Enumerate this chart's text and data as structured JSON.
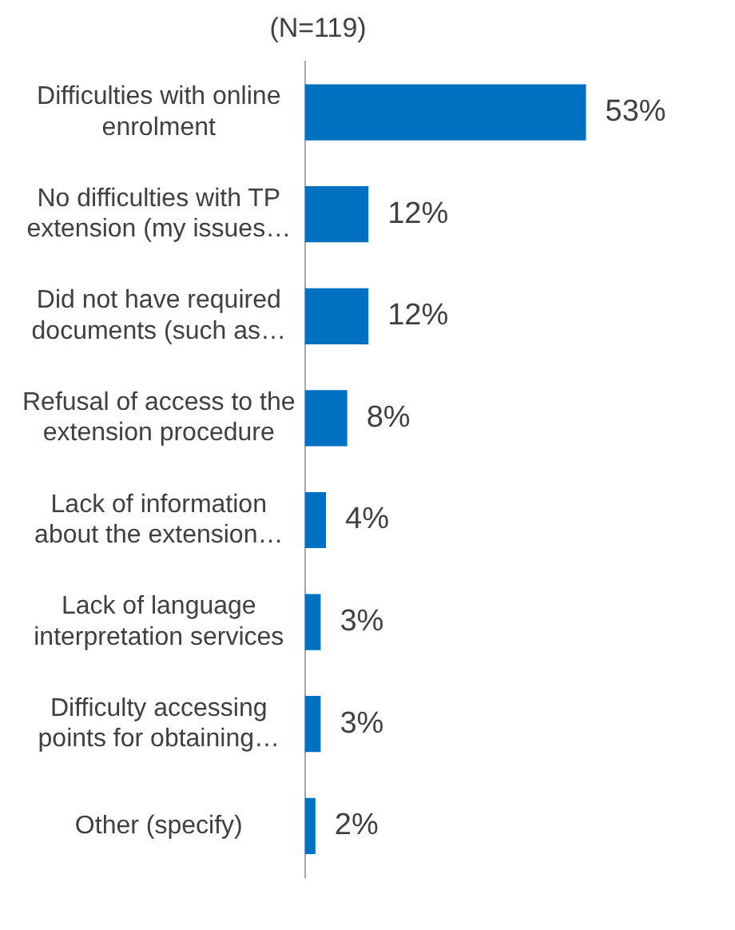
{
  "chart_data": {
    "type": "bar",
    "orientation": "horizontal",
    "subtitle": "(N=119)",
    "categories": [
      "Difficulties with online enrolment",
      "No difficulties with TP extension (my issues…",
      "Did not have required documents (such as…",
      "Refusal of access to the extension procedure",
      "Lack of information about the extension…",
      "Lack of language interpretation services",
      "Difficulty accessing points for obtaining…",
      "Other (specify)"
    ],
    "values": [
      53,
      12,
      12,
      8,
      4,
      3,
      3,
      2
    ],
    "value_labels": [
      "53%",
      "12%",
      "12%",
      "8%",
      "4%",
      "3%",
      "3%",
      "2%"
    ],
    "color": "#0070c0",
    "legend": false,
    "tick_labels": "y"
  }
}
